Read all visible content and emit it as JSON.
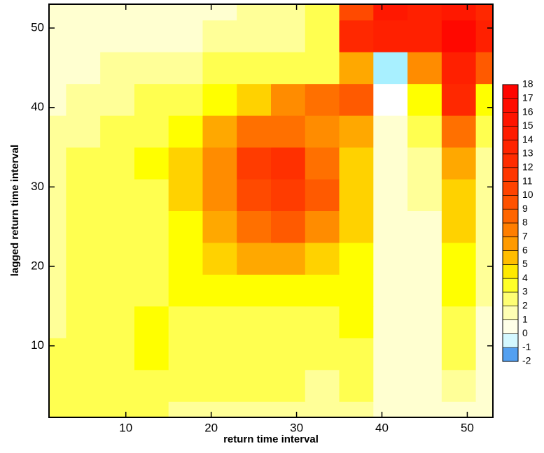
{
  "chart_data": {
    "type": "heatmap",
    "xlabel": "return time interval",
    "ylabel": "lagged return time interval",
    "x": [
      1,
      5,
      9,
      13,
      17,
      21,
      25,
      29,
      33,
      37,
      41,
      45,
      49,
      53
    ],
    "y": [
      1,
      5,
      9,
      13,
      17,
      21,
      25,
      29,
      33,
      37,
      41,
      45,
      49,
      53
    ],
    "z": [
      [
        3,
        3,
        3,
        3,
        2,
        2,
        2,
        2,
        2,
        2,
        1,
        1,
        1,
        1
      ],
      [
        3,
        3,
        3,
        3,
        3,
        3,
        3,
        3,
        2,
        3,
        1,
        1,
        2,
        1
      ],
      [
        3,
        3,
        3,
        4,
        3,
        3,
        3,
        3,
        3,
        3,
        1,
        1,
        3,
        1
      ],
      [
        2,
        3,
        3,
        4,
        3,
        3,
        3,
        3,
        3,
        4,
        1,
        1,
        3,
        1
      ],
      [
        2,
        3,
        3,
        3,
        4,
        4,
        4,
        4,
        4,
        4,
        1,
        1,
        4,
        2
      ],
      [
        2,
        3,
        3,
        3,
        4,
        5,
        6,
        6,
        5,
        4,
        1,
        1,
        4,
        2
      ],
      [
        2,
        3,
        3,
        3,
        4,
        6,
        8,
        9,
        7,
        5,
        1,
        1,
        5,
        2
      ],
      [
        2,
        3,
        3,
        3,
        5,
        7,
        10,
        11,
        9,
        5,
        1,
        2,
        5,
        2
      ],
      [
        2,
        3,
        3,
        4,
        5,
        7,
        11,
        12,
        8,
        5,
        1,
        2,
        6,
        2
      ],
      [
        2,
        2,
        3,
        3,
        4,
        6,
        8,
        8,
        7,
        6,
        1,
        3,
        8,
        3
      ],
      [
        1,
        2,
        2,
        3,
        3,
        4,
        5,
        7,
        8,
        9,
        0,
        4,
        13,
        4
      ],
      [
        1,
        1,
        2,
        2,
        2,
        3,
        3,
        3,
        3,
        6,
        -1,
        7,
        14,
        9
      ],
      [
        1,
        1,
        1,
        1,
        1,
        2,
        2,
        2,
        3,
        13,
        14,
        14,
        17,
        14
      ],
      [
        1,
        1,
        1,
        1,
        1,
        1,
        2,
        2,
        3,
        10,
        15,
        14,
        15,
        13
      ]
    ],
    "xlim": [
      1,
      53
    ],
    "ylim": [
      1,
      53
    ],
    "xticks": [
      10,
      20,
      30,
      40,
      50
    ],
    "yticks": [
      10,
      20,
      30,
      40,
      50
    ],
    "colorbar_ticks": [
      -2,
      -1,
      0,
      1,
      2,
      3,
      4,
      5,
      6,
      7,
      8,
      9,
      10,
      11,
      12,
      13,
      14,
      15,
      16,
      17,
      18
    ],
    "colors": [
      "#0050e0",
      "#a8f0ff",
      "#ffffff",
      "#ffffd0",
      "#ffff98",
      "#ffff50",
      "#ffff00",
      "#ffd200",
      "#ffa800",
      "#ff8c00",
      "#ff7000",
      "#ff5a00",
      "#ff4a00",
      "#ff3c00",
      "#ff3000",
      "#ff2800",
      "#ff2000",
      "#ff1800",
      "#ff1000",
      "#ff0800",
      "#ff0000"
    ]
  }
}
